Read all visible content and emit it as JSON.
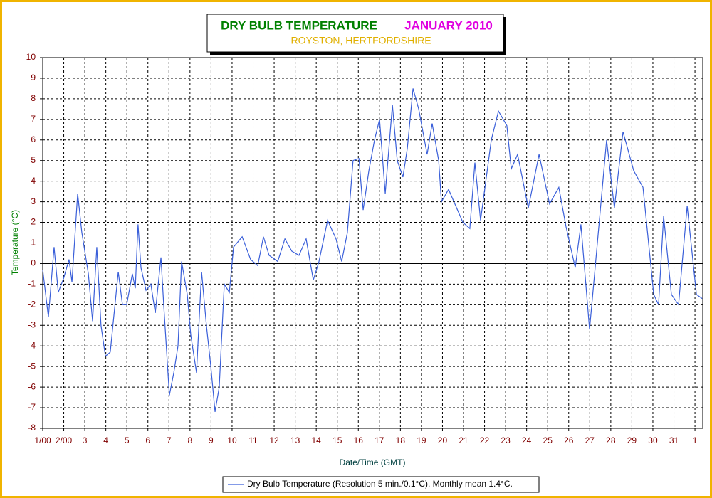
{
  "chart_data": {
    "type": "line",
    "title": "DRY BULB TEMPERATURE",
    "period": "JANUARY 2010",
    "subtitle": "ROYSTON, HERTFORDSHIRE",
    "x_label": "Date/Time (GMT)",
    "y_label": "Temperature (°C)",
    "xlim": [
      1,
      32.37
    ],
    "ylim": [
      -8,
      10
    ],
    "xticks": [
      {
        "value": 1,
        "label": "1/00"
      },
      {
        "value": 2,
        "label": "2/00"
      },
      3,
      4,
      5,
      6,
      7,
      8,
      9,
      10,
      11,
      12,
      13,
      14,
      15,
      16,
      17,
      18,
      19,
      20,
      21,
      22,
      23,
      24,
      25,
      26,
      27,
      28,
      29,
      30,
      31,
      {
        "value": 32,
        "label": "1"
      }
    ],
    "yticks": [
      -8,
      -7,
      -6,
      -5,
      -4,
      -3,
      -2,
      -1,
      0,
      1,
      2,
      3,
      4,
      5,
      6,
      7,
      8,
      9,
      10
    ],
    "grid": true,
    "legend": "bottom",
    "x": [
      1,
      1.27,
      1.54,
      1.74,
      2,
      2.25,
      2.39,
      2.66,
      2.86,
      3.17,
      3.37,
      3.57,
      3.77,
      3.98,
      4.21,
      4.59,
      4.79,
      4.99,
      5.26,
      5.4,
      5.53,
      5.67,
      5.91,
      6.14,
      6.35,
      6.62,
      6.75,
      7.02,
      7.23,
      7.43,
      7.6,
      7.87,
      8.04,
      8.31,
      8.55,
      8.78,
      8.99,
      9.19,
      9.39,
      9.63,
      9.87,
      10.07,
      10.48,
      10.88,
      11.22,
      11.49,
      11.76,
      12.17,
      12.51,
      12.84,
      13.18,
      13.52,
      13.86,
      14.13,
      14.54,
      14.94,
      15.21,
      15.48,
      15.75,
      16.03,
      16.23,
      16.5,
      16.77,
      17.01,
      17.28,
      17.62,
      17.85,
      18.12,
      18.33,
      18.6,
      18.87,
      19.27,
      19.51,
      19.82,
      19.95,
      20.29,
      20.63,
      20.97,
      21.3,
      21.54,
      21.81,
      22.32,
      22.66,
      23.06,
      23.27,
      23.57,
      24.08,
      24.59,
      25.09,
      25.53,
      25.87,
      26.31,
      26.58,
      26.99,
      27.23,
      27.8,
      28.17,
      28.58,
      29.09,
      29.53,
      30.04,
      30.27,
      30.51,
      30.88,
      31.22,
      31.63,
      32.07,
      32.34
    ],
    "series": [
      {
        "name": "Dry Bulb Temperature (Resolution 5 min./0.1°C). Monthly mean 1.4°C.",
        "color": "#3a5fd9",
        "values": [
          -0.3,
          -2.6,
          0.8,
          -1.4,
          -0.7,
          0.2,
          -0.9,
          3.4,
          1.5,
          -0.5,
          -2.8,
          0.8,
          -3.0,
          -4.5,
          -4.3,
          -0.4,
          -2.0,
          -2.0,
          -0.5,
          -1.2,
          1.9,
          -0.2,
          -1.3,
          -1.0,
          -2.4,
          0.3,
          -2.0,
          -6.4,
          -5.3,
          -4.0,
          0.1,
          -1.5,
          -3.5,
          -5.3,
          -0.4,
          -3.0,
          -5.0,
          -7.2,
          -6.0,
          -1.0,
          -1.4,
          0.8,
          1.3,
          0.2,
          -0.1,
          1.3,
          0.4,
          0.1,
          1.2,
          0.6,
          0.4,
          1.2,
          -0.8,
          0.1,
          2.1,
          1.2,
          0.1,
          1.5,
          5.0,
          5.1,
          2.6,
          4.5,
          6.0,
          7.0,
          3.4,
          7.7,
          5.0,
          4.2,
          5.6,
          8.5,
          7.5,
          5.3,
          6.8,
          5.0,
          3.0,
          3.6,
          2.8,
          2.0,
          1.7,
          4.9,
          2.1,
          6.0,
          7.4,
          6.7,
          4.6,
          5.3,
          2.7,
          5.3,
          2.9,
          3.7,
          1.8,
          -0.2,
          1.9,
          -3.2,
          -0.5,
          6.0,
          2.7,
          6.4,
          4.5,
          3.7,
          -1.5,
          -2.0,
          2.3,
          -1.5,
          -2.0,
          2.8,
          -1.5,
          -1.7
        ]
      }
    ]
  }
}
